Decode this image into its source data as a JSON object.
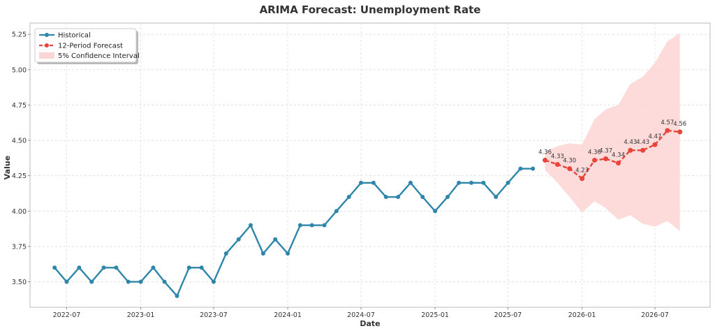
{
  "chart_data": {
    "type": "line",
    "title": "ARIMA Forecast: Unemployment Rate",
    "xlabel": "Date",
    "ylabel": "Value",
    "xlim": [
      "2022-04-01",
      "2026-11-15"
    ],
    "ylim": [
      3.32,
      5.33
    ],
    "grid": true,
    "legend_position": "top-left",
    "x_ticks": [
      "2022-07",
      "2023-01",
      "2023-07",
      "2024-01",
      "2024-07",
      "2025-01",
      "2025-07",
      "2026-01",
      "2026-07"
    ],
    "y_ticks": [
      "3.50",
      "3.75",
      "4.00",
      "4.25",
      "4.50",
      "4.75",
      "5.00",
      "5.25"
    ],
    "colors": {
      "historical": "#2e86ab",
      "forecast": "#e8443a",
      "confidence": "#fdd5d5"
    },
    "series": [
      {
        "name": "Historical",
        "x": [
          "2022-06",
          "2022-07",
          "2022-08",
          "2022-09",
          "2022-10",
          "2022-11",
          "2022-12",
          "2023-01",
          "2023-02",
          "2023-03",
          "2023-04",
          "2023-05",
          "2023-06",
          "2023-07",
          "2023-08",
          "2023-09",
          "2023-10",
          "2023-11",
          "2023-12",
          "2024-01",
          "2024-02",
          "2024-03",
          "2024-04",
          "2024-05",
          "2024-06",
          "2024-07",
          "2024-08",
          "2024-09",
          "2024-10",
          "2024-11",
          "2024-12",
          "2025-01",
          "2025-02",
          "2025-03",
          "2025-04",
          "2025-05",
          "2025-06",
          "2025-07",
          "2025-08",
          "2025-09"
        ],
        "values": [
          3.6,
          3.5,
          3.6,
          3.5,
          3.6,
          3.6,
          3.5,
          3.5,
          3.6,
          3.5,
          3.4,
          3.6,
          3.6,
          3.5,
          3.7,
          3.8,
          3.9,
          3.7,
          3.8,
          3.7,
          3.9,
          3.9,
          3.9,
          4.0,
          4.1,
          4.2,
          4.2,
          4.1,
          4.1,
          4.2,
          4.1,
          4.0,
          4.1,
          4.2,
          4.2,
          4.2,
          4.1,
          4.2,
          4.3,
          4.3
        ]
      },
      {
        "name": "12-Period Forecast",
        "x": [
          "2025-10",
          "2025-11",
          "2025-12",
          "2026-01",
          "2026-02",
          "2026-03",
          "2026-04",
          "2026-05",
          "2026-06",
          "2026-07",
          "2026-08",
          "2026-09"
        ],
        "values": [
          4.36,
          4.33,
          4.3,
          4.23,
          4.36,
          4.37,
          4.34,
          4.43,
          4.43,
          4.47,
          4.57,
          4.56
        ],
        "labels": [
          "4.36",
          "4.33",
          "4.30",
          "4.23",
          "4.36",
          "4.37",
          "4.34",
          "4.43",
          "4.43",
          "4.47",
          "4.57",
          "4.56"
        ]
      }
    ],
    "confidence_interval": {
      "name": "5% Confidence Interval",
      "x": [
        "2025-10",
        "2025-11",
        "2025-12",
        "2026-01",
        "2026-02",
        "2026-03",
        "2026-04",
        "2026-05",
        "2026-06",
        "2026-07",
        "2026-08",
        "2026-09"
      ],
      "lower": [
        4.29,
        4.2,
        4.1,
        3.99,
        4.07,
        4.02,
        3.94,
        3.97,
        3.91,
        3.89,
        3.93,
        3.86
      ],
      "upper": [
        4.42,
        4.46,
        4.48,
        4.47,
        4.65,
        4.72,
        4.75,
        4.9,
        4.95,
        5.05,
        5.2,
        5.26
      ]
    }
  }
}
